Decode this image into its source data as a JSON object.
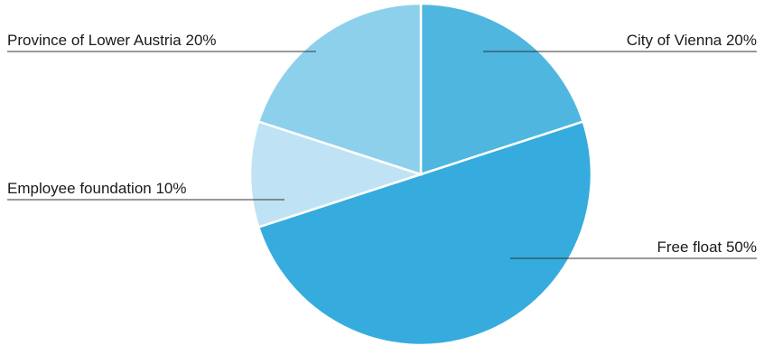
{
  "chart_data": {
    "type": "pie",
    "title": "",
    "slices": [
      {
        "label": "City of Vienna 20%",
        "name": "City of Vienna",
        "value": 20,
        "color": "#4fb6e0"
      },
      {
        "label": "Free float 50%",
        "name": "Free float",
        "value": 50,
        "color": "#35acdd"
      },
      {
        "label": "Employee foundation 10%",
        "name": "Employee foundation",
        "value": 10,
        "color": "#bfe3f4"
      },
      {
        "label": "Province of Lower Austria 20%",
        "name": "Province of Lower Austria",
        "value": 20,
        "color": "#8dd0ec"
      }
    ],
    "start": "12 o'clock",
    "direction": "clockwise",
    "legend": "none"
  }
}
